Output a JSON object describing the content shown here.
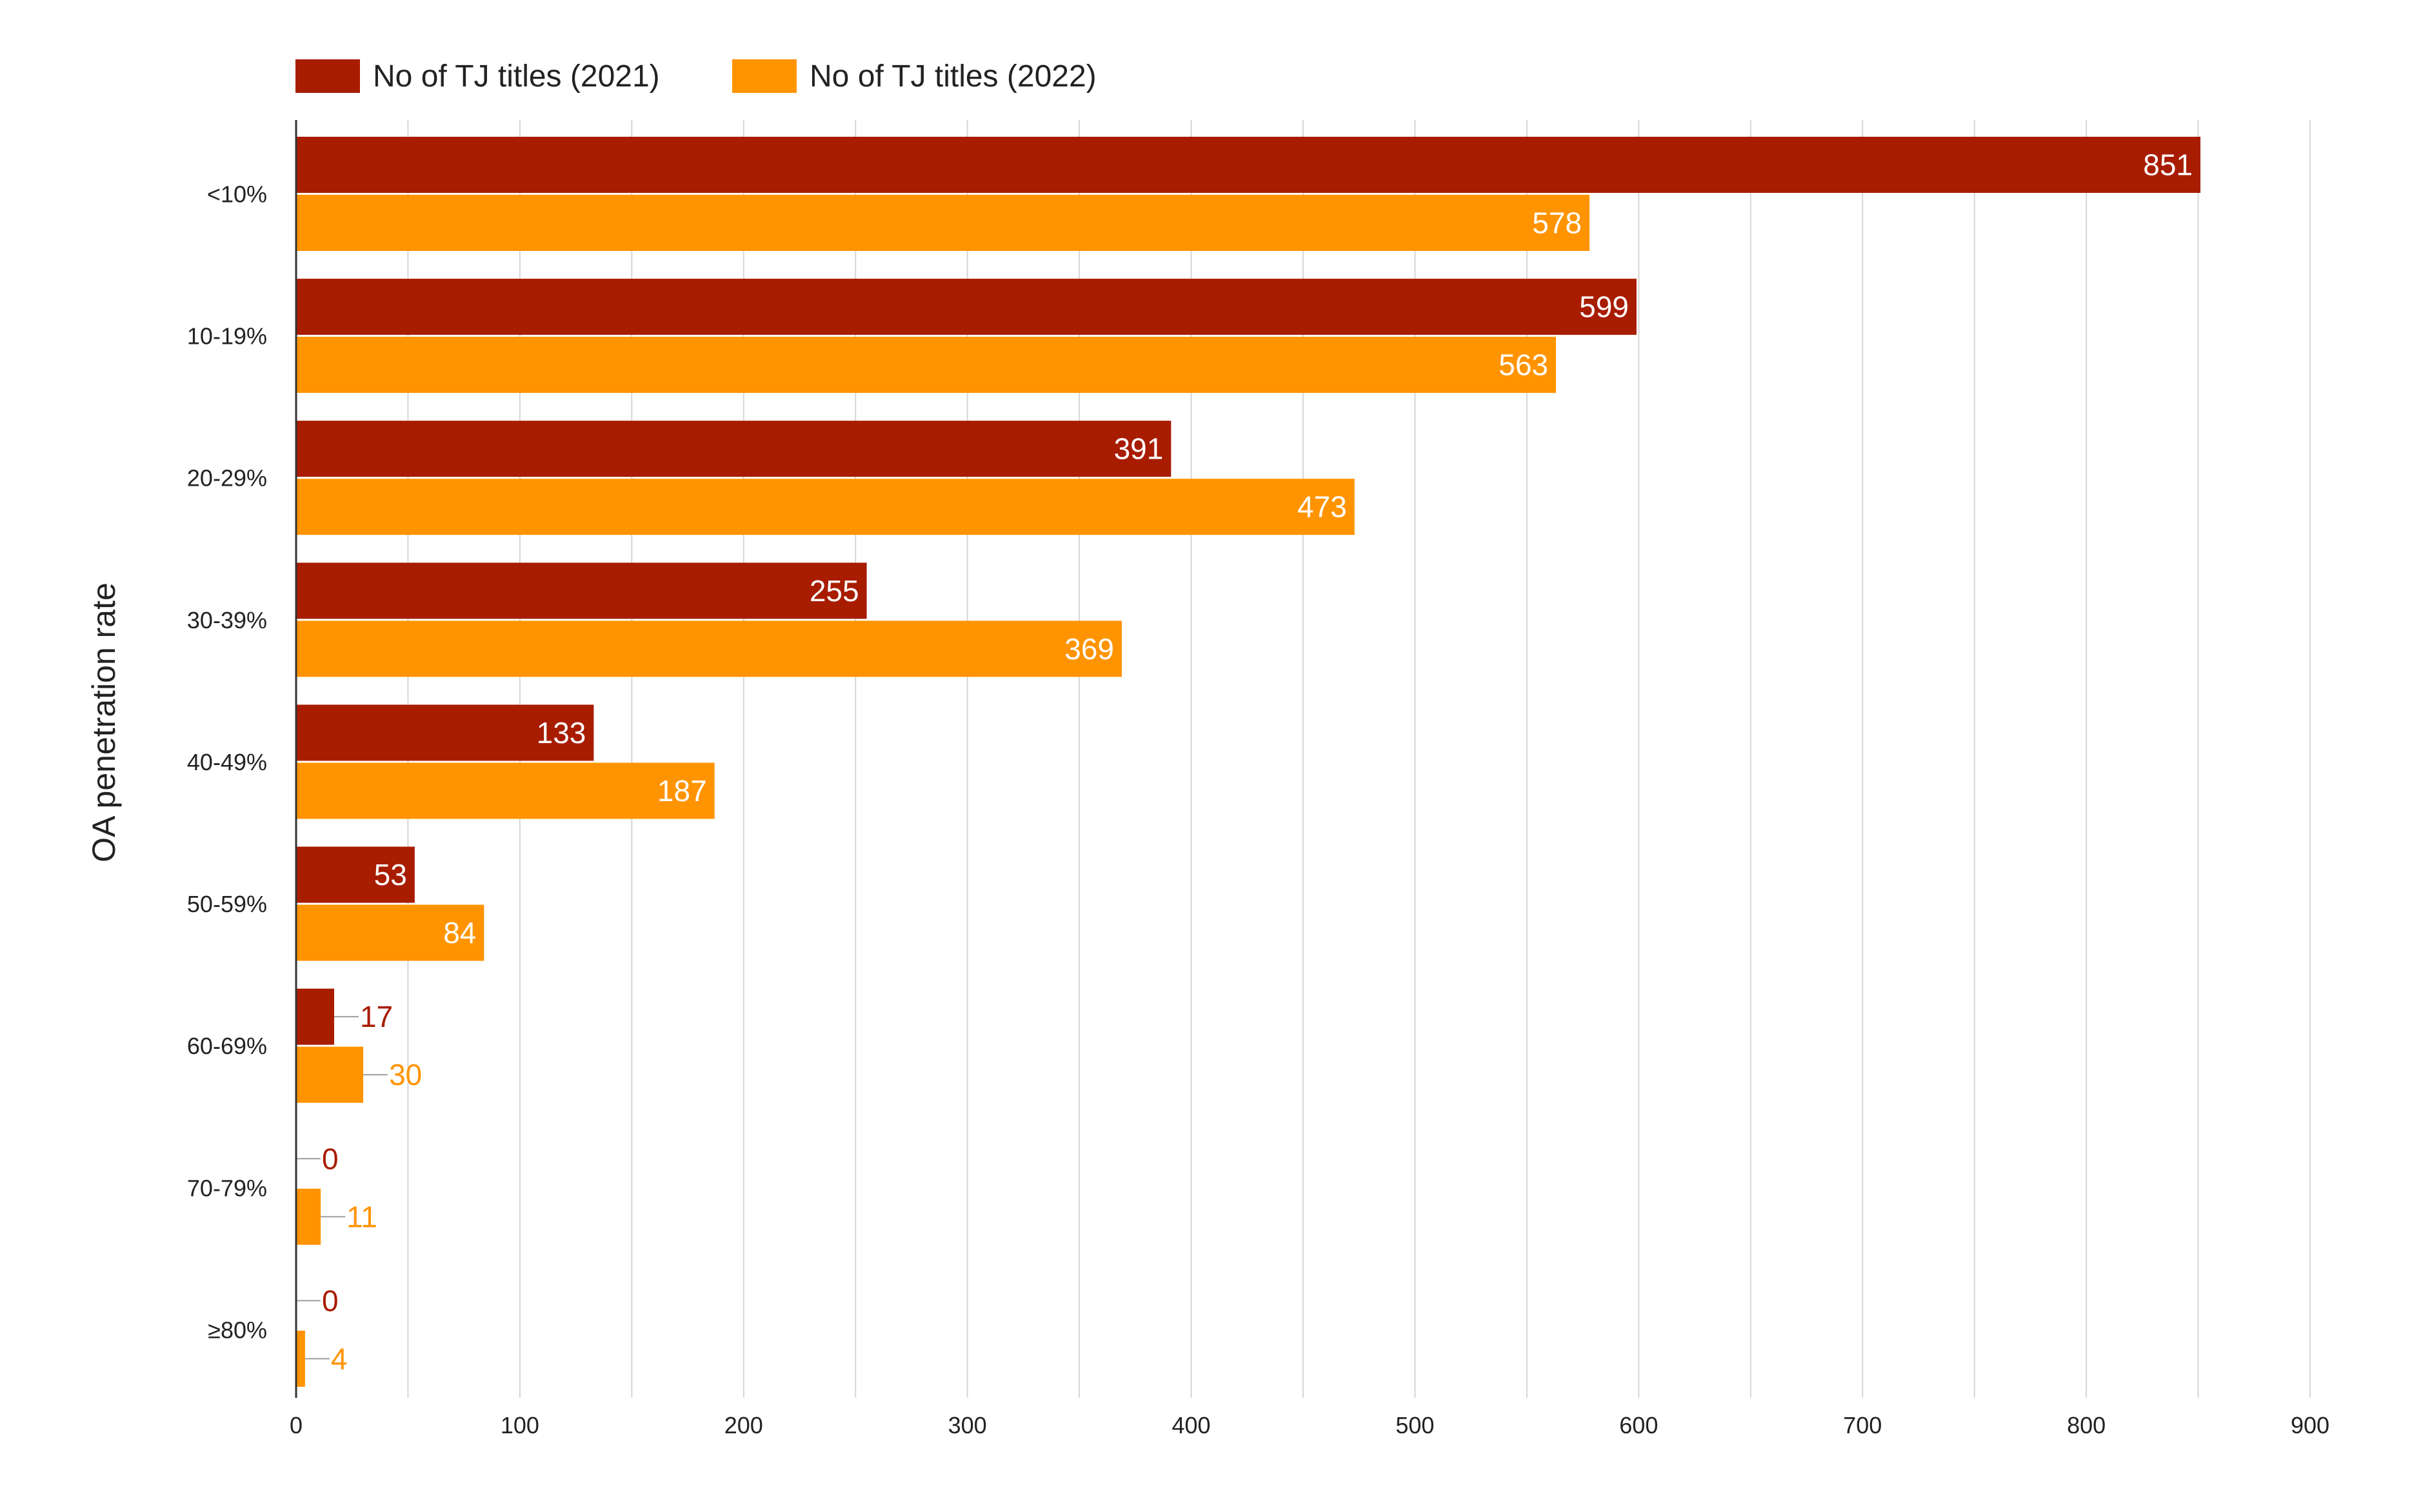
{
  "chart_data": {
    "type": "bar",
    "orientation": "horizontal",
    "title": "",
    "xlabel": "",
    "ylabel": "OA penetration rate",
    "categories": [
      "<10%",
      "10-19%",
      "20-29%",
      "30-39%",
      "40-49%",
      "50-59%",
      "60-69%",
      "70-79%",
      "≥80%"
    ],
    "series": [
      {
        "name": "No of TJ titles (2021)",
        "color": "#a81c00",
        "values": [
          851,
          599,
          391,
          255,
          133,
          53,
          17,
          0,
          0
        ]
      },
      {
        "name": "No of TJ titles (2022)",
        "color": "#ff9400",
        "values": [
          578,
          563,
          473,
          369,
          187,
          84,
          30,
          11,
          4
        ]
      }
    ],
    "xlim": [
      0,
      900
    ],
    "xticks": [
      0,
      100,
      200,
      300,
      400,
      500,
      600,
      700,
      800,
      900
    ],
    "grid": true,
    "legend_position": "top-left",
    "data_labels": true
  }
}
